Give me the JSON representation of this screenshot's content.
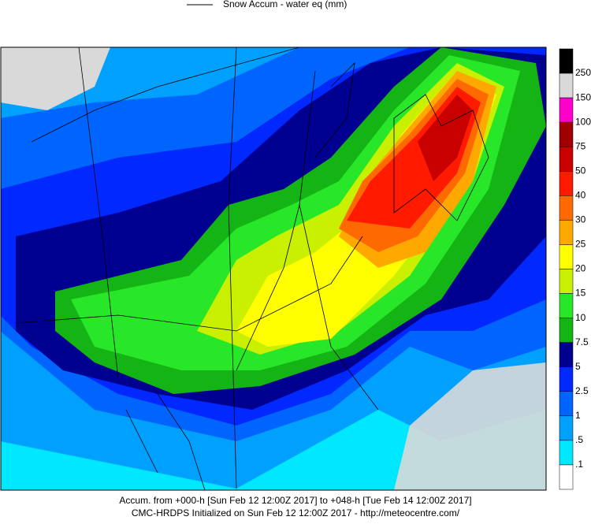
{
  "legend": {
    "label": "Snow Accum - water eq (mm)"
  },
  "colorbar": {
    "labels": [
      "250",
      "150",
      "100",
      "75",
      "50",
      "40",
      "30",
      "25",
      "20",
      "15",
      "10",
      "7.5",
      "5",
      "2.5",
      "1",
      ".5",
      ".1"
    ],
    "colors": [
      "#000000",
      "#d9d9d9",
      "#ff00cc",
      "#a00000",
      "#c80000",
      "#ff1a00",
      "#ff6a00",
      "#ffa800",
      "#ffff00",
      "#c8f000",
      "#28e628",
      "#14b414",
      "#000090",
      "#0028ff",
      "#0064ff",
      "#00a0ff",
      "#00e8ff",
      "#ffffff"
    ]
  },
  "footer": {
    "line1": "Accum. from +000-h [Sun Feb 12 12:00Z 2017] to +048-h [Tue Feb 14 12:00Z 2017]",
    "line2": "CMC-HRDPS Initialized on Sun Feb 12 12:00Z 2017 - http://meteocentre.com/"
  }
}
